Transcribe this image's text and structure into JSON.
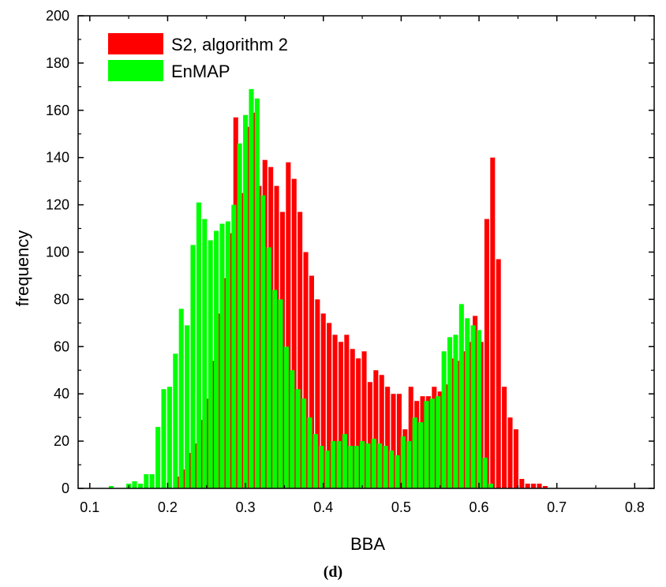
{
  "caption": "(d)",
  "chart_data": {
    "type": "bar",
    "xlabel": "BBA",
    "ylabel": "frequency",
    "xlim": [
      0.085,
      0.825
    ],
    "ylim": [
      0,
      200
    ],
    "xticks": [
      "0.1",
      "0.2",
      "0.3",
      "0.4",
      "0.5",
      "0.6",
      "0.7",
      "0.8"
    ],
    "yticks": [
      "0",
      "20",
      "40",
      "60",
      "80",
      "100",
      "120",
      "140",
      "160",
      "180",
      "200"
    ],
    "legend_position": "top-left",
    "bin_width": 0.0075,
    "series": [
      {
        "name": "S2, algorithm 2",
        "color": "#ff0000",
        "x": [
          0.2125,
          0.22,
          0.2275,
          0.235,
          0.2425,
          0.25,
          0.2575,
          0.265,
          0.2725,
          0.28,
          0.2875,
          0.295,
          0.3025,
          0.31,
          0.3175,
          0.325,
          0.3325,
          0.34,
          0.3475,
          0.355,
          0.3625,
          0.37,
          0.3775,
          0.385,
          0.3925,
          0.4,
          0.4075,
          0.415,
          0.4225,
          0.43,
          0.4375,
          0.445,
          0.4525,
          0.46,
          0.4675,
          0.475,
          0.4825,
          0.49,
          0.4975,
          0.505,
          0.5125,
          0.52,
          0.5275,
          0.535,
          0.5425,
          0.55,
          0.5575,
          0.565,
          0.5725,
          0.58,
          0.5875,
          0.595,
          0.6025,
          0.61,
          0.6175,
          0.625,
          0.6325,
          0.64,
          0.6475,
          0.655,
          0.6625,
          0.67,
          0.6775,
          0.685,
          0.6925,
          0.7,
          0.7075,
          0.715,
          0.7225,
          0.73,
          0.7375
        ],
        "values": [
          5,
          8,
          15,
          19,
          29,
          38,
          54,
          74,
          89,
          108,
          157,
          125,
          153,
          159,
          128,
          139,
          136,
          128,
          117,
          138,
          131,
          117,
          100,
          90,
          80,
          74,
          70,
          65,
          62,
          65,
          59,
          55,
          58,
          45,
          50,
          48,
          43,
          40,
          40,
          25,
          43,
          37,
          39,
          39,
          43,
          41,
          44,
          55,
          54,
          58,
          62,
          73,
          62,
          114,
          140,
          97,
          43,
          30,
          25,
          4,
          2,
          2,
          2,
          1,
          0,
          0,
          0,
          0,
          0,
          0,
          0
        ]
      },
      {
        "name": "EnMAP",
        "color": "#00ff00",
        "x": [
          0.1275,
          0.135,
          0.1425,
          0.15,
          0.1575,
          0.165,
          0.1725,
          0.18,
          0.1875,
          0.195,
          0.2025,
          0.21,
          0.2175,
          0.225,
          0.2325,
          0.24,
          0.2475,
          0.255,
          0.2625,
          0.27,
          0.2775,
          0.285,
          0.2925,
          0.3,
          0.3075,
          0.315,
          0.3225,
          0.33,
          0.3375,
          0.345,
          0.3525,
          0.36,
          0.3675,
          0.375,
          0.3825,
          0.39,
          0.3975,
          0.405,
          0.4125,
          0.42,
          0.4275,
          0.435,
          0.4425,
          0.45,
          0.4575,
          0.465,
          0.4725,
          0.48,
          0.4875,
          0.495,
          0.5025,
          0.51,
          0.5175,
          0.525,
          0.5325,
          0.54,
          0.5475,
          0.555,
          0.5625,
          0.57,
          0.5775,
          0.585,
          0.5925,
          0.6,
          0.6075,
          0.615,
          0.6225,
          0.63,
          0.6375,
          0.645,
          0.6525,
          0.66,
          0.6675,
          0.675,
          0.6825,
          0.69,
          0.6975,
          0.705,
          0.7125,
          0.72,
          0.7275,
          0.735,
          0.7425,
          0.75,
          0.7575
        ],
        "values": [
          1,
          0,
          0,
          2,
          3,
          2,
          6,
          6,
          26,
          42,
          43,
          57,
          76,
          69,
          103,
          121,
          114,
          105,
          109,
          112,
          113,
          120,
          146,
          158,
          169,
          165,
          124,
          102,
          84,
          80,
          60,
          50,
          42,
          38,
          30,
          23,
          18,
          16,
          20,
          20,
          23,
          18,
          18,
          20,
          19,
          21,
          19,
          18,
          16,
          14,
          22,
          20,
          30,
          28,
          37,
          38,
          39,
          58,
          64,
          65,
          78,
          72,
          69,
          67,
          13,
          2,
          0,
          0,
          0,
          0,
          0,
          0,
          0,
          0,
          0,
          0,
          0,
          0,
          0,
          0,
          0,
          0,
          0,
          0,
          0
        ]
      }
    ]
  }
}
